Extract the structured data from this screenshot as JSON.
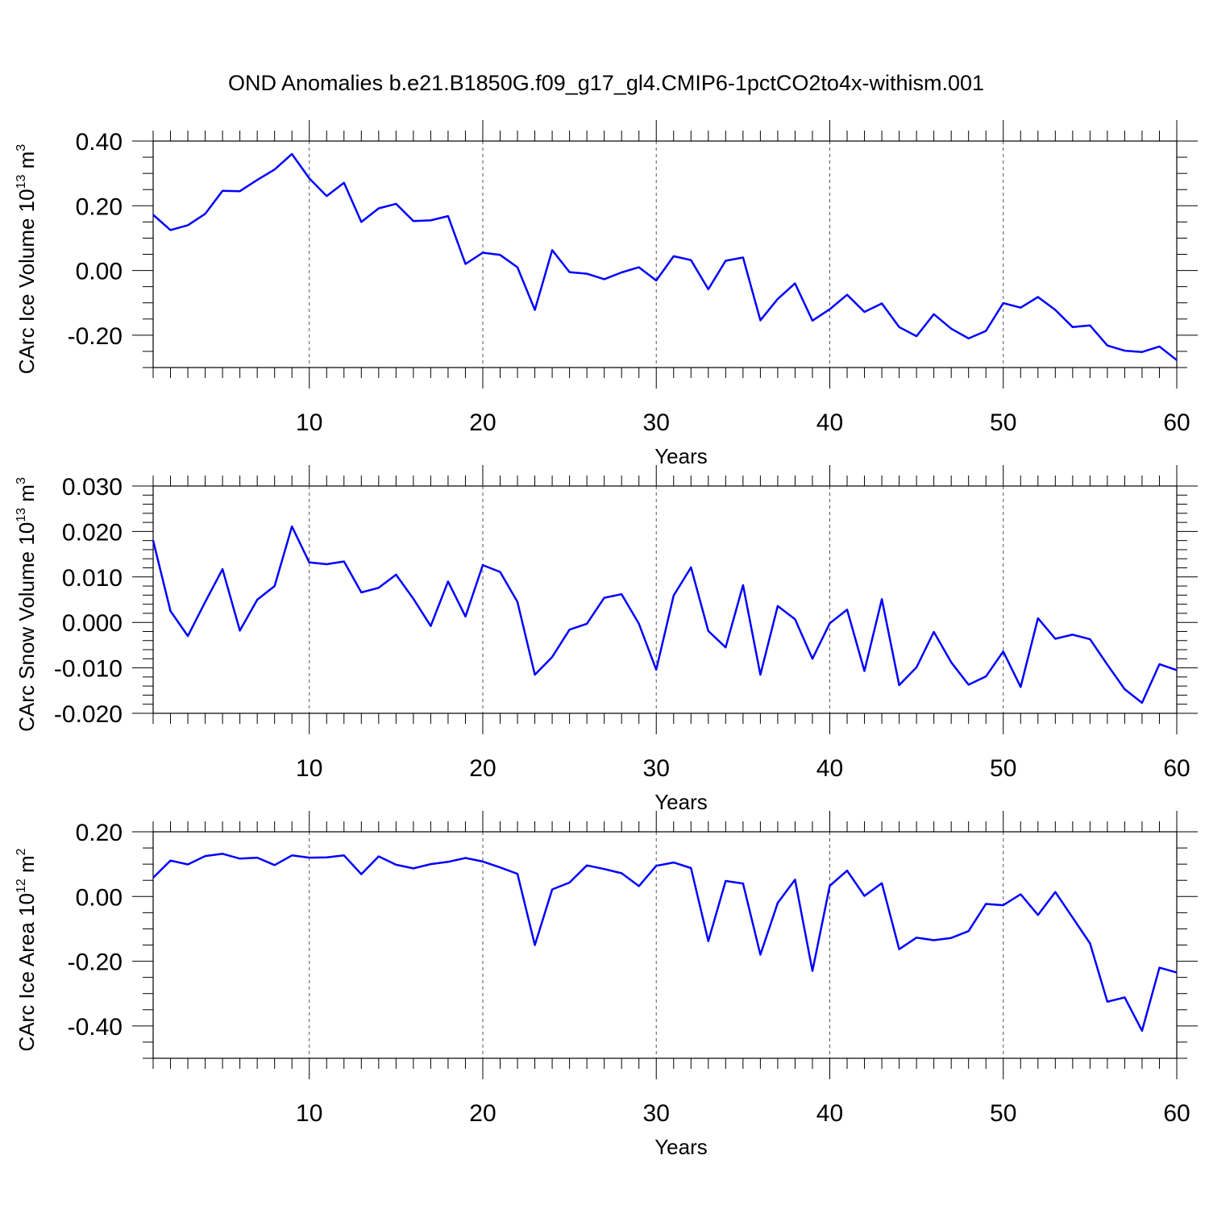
{
  "title": "OND Anomalies b.e21.B1850G.f09_g17_gl4.CMIP6-1pctCO2to4x-withism.001",
  "line_color": "#0000ff",
  "chart_data": [
    {
      "type": "line",
      "ylabel": {
        "text": "CArc Ice Volume 10",
        "exp": "13",
        "unit": " m",
        "unit_exp": "3"
      },
      "xlabel": "Years",
      "xlim": [
        1,
        60
      ],
      "ylim": [
        -0.3,
        0.4
      ],
      "xticks": [
        10,
        20,
        30,
        40,
        50,
        60
      ],
      "yticks": [
        -0.2,
        0.0,
        0.2,
        0.4
      ],
      "yticklabels": [
        "-0.20",
        "0.00",
        "0.20",
        "0.40"
      ],
      "yminor": 0.05,
      "grid": "dashed vertical at major x ticks",
      "x": [
        1,
        2,
        3,
        4,
        5,
        6,
        7,
        8,
        9,
        10,
        11,
        12,
        13,
        14,
        15,
        16,
        17,
        18,
        19,
        20,
        21,
        22,
        23,
        24,
        25,
        26,
        27,
        28,
        29,
        30,
        31,
        32,
        33,
        34,
        35,
        36,
        37,
        38,
        39,
        40,
        41,
        42,
        43,
        44,
        45,
        46,
        47,
        48,
        49,
        50,
        51,
        52,
        53,
        54,
        55,
        56,
        57,
        58,
        59,
        60
      ],
      "series": [
        {
          "values": [
            0.172,
            0.125,
            0.14,
            0.175,
            0.246,
            0.245,
            0.28,
            0.312,
            0.36,
            0.285,
            0.23,
            0.271,
            0.15,
            0.192,
            0.206,
            0.153,
            0.155,
            0.168,
            0.02,
            0.055,
            0.048,
            0.01,
            -0.122,
            0.063,
            -0.005,
            -0.01,
            -0.027,
            -0.006,
            0.01,
            -0.031,
            0.044,
            0.032,
            -0.058,
            0.03,
            0.04,
            -0.154,
            -0.088,
            -0.04,
            -0.155,
            -0.12,
            -0.075,
            -0.128,
            -0.102,
            -0.175,
            -0.203,
            -0.135,
            -0.18,
            -0.21,
            -0.187,
            -0.101,
            -0.115,
            -0.082,
            -0.122,
            -0.175,
            -0.17,
            -0.232,
            -0.248,
            -0.252,
            -0.235,
            -0.277
          ]
        }
      ]
    },
    {
      "type": "line",
      "ylabel": {
        "text": "CArc Snow Volume 10",
        "exp": "13",
        "unit": " m",
        "unit_exp": "3"
      },
      "xlabel": "Years",
      "xlim": [
        1,
        60
      ],
      "ylim": [
        -0.02,
        0.03
      ],
      "xticks": [
        10,
        20,
        30,
        40,
        50,
        60
      ],
      "yticks": [
        -0.02,
        -0.01,
        0.0,
        0.01,
        0.02,
        0.03
      ],
      "yticklabels": [
        "-0.020",
        "-0.010",
        "0.000",
        "0.010",
        "0.020",
        "0.030"
      ],
      "yminor": 0.002,
      "grid": "dashed vertical at major x ticks",
      "x": [
        1,
        2,
        3,
        4,
        5,
        6,
        7,
        8,
        9,
        10,
        11,
        12,
        13,
        14,
        15,
        16,
        17,
        18,
        19,
        20,
        21,
        22,
        23,
        24,
        25,
        26,
        27,
        28,
        29,
        30,
        31,
        32,
        33,
        34,
        35,
        36,
        37,
        38,
        39,
        40,
        41,
        42,
        43,
        44,
        45,
        46,
        47,
        48,
        49,
        50,
        51,
        52,
        53,
        54,
        55,
        56,
        57,
        58,
        59,
        60
      ],
      "series": [
        {
          "values": [
            0.018,
            0.0025,
            -0.003,
            0.0045,
            0.0117,
            -0.0018,
            0.005,
            0.008,
            0.0211,
            0.0132,
            0.0128,
            0.0134,
            0.0066,
            0.0076,
            0.0105,
            0.0052,
            -0.0008,
            0.009,
            0.0013,
            0.0126,
            0.0111,
            0.0045,
            -0.0115,
            -0.0076,
            -0.0016,
            -0.0003,
            0.0054,
            0.0062,
            -0.0003,
            -0.0104,
            0.0059,
            0.0121,
            -0.0019,
            -0.0055,
            0.0082,
            -0.0115,
            0.0036,
            0.0007,
            -0.008,
            -0.0002,
            0.0028,
            -0.0107,
            0.0051,
            -0.0138,
            -0.0099,
            -0.0021,
            -0.0088,
            -0.0137,
            -0.0119,
            -0.0064,
            -0.0142,
            0.0009,
            -0.0036,
            -0.0027,
            -0.0037,
            -0.0093,
            -0.0147,
            -0.0177,
            -0.0092,
            -0.0105
          ]
        }
      ]
    },
    {
      "type": "line",
      "ylabel": {
        "text": "CArc Ice Area 10",
        "exp": "12",
        "unit": " m",
        "unit_exp": "2"
      },
      "xlabel": "Years",
      "xlim": [
        1,
        60
      ],
      "ylim": [
        -0.5,
        0.2
      ],
      "xticks": [
        10,
        20,
        30,
        40,
        50,
        60
      ],
      "yticks": [
        -0.4,
        -0.2,
        0.0,
        0.2
      ],
      "yticklabels": [
        "-0.40",
        "-0.20",
        "0.00",
        "0.20"
      ],
      "yminor": 0.05,
      "grid": "dashed vertical at major x ticks",
      "x": [
        1,
        2,
        3,
        4,
        5,
        6,
        7,
        8,
        9,
        10,
        11,
        12,
        13,
        14,
        15,
        16,
        17,
        18,
        19,
        20,
        21,
        22,
        23,
        24,
        25,
        26,
        27,
        28,
        29,
        30,
        31,
        32,
        33,
        34,
        35,
        36,
        37,
        38,
        39,
        40,
        41,
        42,
        43,
        44,
        45,
        46,
        47,
        48,
        49,
        50,
        51,
        52,
        53,
        54,
        55,
        56,
        57,
        58,
        59,
        60
      ],
      "series": [
        {
          "values": [
            0.058,
            0.111,
            0.099,
            0.125,
            0.132,
            0.117,
            0.12,
            0.097,
            0.127,
            0.12,
            0.121,
            0.127,
            0.069,
            0.124,
            0.098,
            0.087,
            0.1,
            0.107,
            0.119,
            0.108,
            0.09,
            0.07,
            -0.15,
            0.022,
            0.043,
            0.096,
            0.085,
            0.072,
            0.032,
            0.095,
            0.105,
            0.088,
            -0.138,
            0.048,
            0.04,
            -0.18,
            -0.02,
            0.052,
            -0.23,
            0.033,
            0.08,
            0.002,
            0.041,
            -0.163,
            -0.127,
            -0.135,
            -0.128,
            -0.107,
            -0.023,
            -0.027,
            0.007,
            -0.057,
            0.014,
            -0.065,
            -0.145,
            -0.325,
            -0.312,
            -0.415,
            -0.22,
            -0.235
          ]
        }
      ]
    }
  ]
}
